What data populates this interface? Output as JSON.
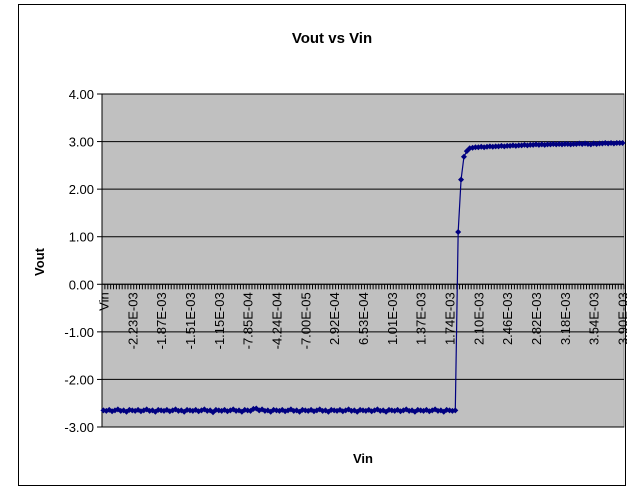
{
  "chart_data": {
    "type": "line",
    "title": "Vout vs Vin",
    "x_label": "Vin",
    "y_label": "Vout",
    "categories": [
      "Vin",
      null,
      null,
      null,
      null,
      null,
      null,
      null,
      null,
      null,
      "-2.23E-03",
      null,
      null,
      null,
      null,
      null,
      null,
      null,
      null,
      null,
      "-1.87E-03",
      null,
      null,
      null,
      null,
      null,
      null,
      null,
      null,
      null,
      "-1.51E-03",
      null,
      null,
      null,
      null,
      null,
      null,
      null,
      null,
      null,
      "-1.15E-03",
      null,
      null,
      null,
      null,
      null,
      null,
      null,
      null,
      null,
      "-7.85E-04",
      null,
      null,
      null,
      null,
      null,
      null,
      null,
      null,
      null,
      "-4.24E-04",
      null,
      null,
      null,
      null,
      null,
      null,
      null,
      null,
      null,
      "-7.00E-05",
      null,
      null,
      null,
      null,
      null,
      null,
      null,
      null,
      null,
      "2.92E-04",
      null,
      null,
      null,
      null,
      null,
      null,
      null,
      null,
      null,
      "6.53E-04",
      null,
      null,
      null,
      null,
      null,
      null,
      null,
      null,
      null,
      "1.01E-03",
      null,
      null,
      null,
      null,
      null,
      null,
      null,
      null,
      null,
      "1.37E-03",
      null,
      null,
      null,
      null,
      null,
      null,
      null,
      null,
      null,
      "1.74E-03",
      null,
      null,
      null,
      null,
      null,
      null,
      null,
      null,
      null,
      "2.10E-03",
      null,
      null,
      null,
      null,
      null,
      null,
      null,
      null,
      null,
      "2.46E-03",
      null,
      null,
      null,
      null,
      null,
      null,
      null,
      null,
      null,
      "2.82E-03",
      null,
      null,
      null,
      null,
      null,
      null,
      null,
      null,
      null,
      "3.18E-03",
      null,
      null,
      null,
      null,
      null,
      null,
      null,
      null,
      null,
      "3.54E-03",
      null,
      null,
      null,
      null,
      null,
      null,
      null,
      null,
      null,
      "3.90E-03"
    ],
    "series": [
      {
        "name": "Vout",
        "color": "#000080",
        "values": [
          -2.65,
          -2.66,
          -2.64,
          -2.67,
          -2.65,
          -2.63,
          -2.66,
          -2.65,
          -2.68,
          -2.64,
          -2.65,
          -2.66,
          -2.64,
          -2.67,
          -2.65,
          -2.63,
          -2.66,
          -2.65,
          -2.68,
          -2.64,
          -2.65,
          -2.66,
          -2.64,
          -2.67,
          -2.65,
          -2.63,
          -2.66,
          -2.65,
          -2.68,
          -2.64,
          -2.65,
          -2.66,
          -2.64,
          -2.67,
          -2.65,
          -2.63,
          -2.66,
          -2.65,
          -2.69,
          -2.64,
          -2.65,
          -2.66,
          -2.64,
          -2.67,
          -2.65,
          -2.63,
          -2.66,
          -2.65,
          -2.68,
          -2.64,
          -2.65,
          -2.66,
          -2.62,
          -2.61,
          -2.65,
          -2.63,
          -2.66,
          -2.65,
          -2.68,
          -2.64,
          -2.65,
          -2.66,
          -2.64,
          -2.67,
          -2.65,
          -2.63,
          -2.66,
          -2.65,
          -2.68,
          -2.64,
          -2.65,
          -2.66,
          -2.64,
          -2.67,
          -2.65,
          -2.63,
          -2.66,
          -2.65,
          -2.68,
          -2.64,
          -2.65,
          -2.66,
          -2.64,
          -2.67,
          -2.65,
          -2.63,
          -2.66,
          -2.65,
          -2.68,
          -2.64,
          -2.65,
          -2.66,
          -2.64,
          -2.67,
          -2.65,
          -2.63,
          -2.66,
          -2.65,
          -2.68,
          -2.64,
          -2.65,
          -2.66,
          -2.64,
          -2.67,
          -2.65,
          -2.63,
          -2.66,
          -2.65,
          -2.68,
          -2.64,
          -2.65,
          -2.66,
          -2.64,
          -2.67,
          -2.65,
          -2.63,
          -2.66,
          -2.65,
          -2.68,
          -2.64,
          -2.65,
          -2.66,
          -2.65,
          1.1,
          2.2,
          2.68,
          2.8,
          2.86,
          2.87,
          2.88,
          2.88,
          2.89,
          2.88,
          2.89,
          2.9,
          2.89,
          2.9,
          2.9,
          2.91,
          2.9,
          2.91,
          2.91,
          2.92,
          2.91,
          2.92,
          2.92,
          2.93,
          2.92,
          2.93,
          2.93,
          2.94,
          2.93,
          2.94,
          2.93,
          2.94,
          2.94,
          2.95,
          2.94,
          2.95,
          2.94,
          2.95,
          2.95,
          2.94,
          2.95,
          2.95,
          2.96,
          2.95,
          2.96,
          2.95,
          2.94,
          2.96,
          2.95,
          2.96,
          2.96,
          2.97,
          2.96,
          2.97,
          2.96,
          2.97,
          2.97,
          2.97
        ]
      }
    ],
    "ylim": [
      -3,
      4
    ],
    "yticks": [
      {
        "value": -3,
        "label": "-3.00"
      },
      {
        "value": -2,
        "label": "-2.00"
      },
      {
        "value": -1,
        "label": "-1.00"
      },
      {
        "value": 0,
        "label": "0.00"
      },
      {
        "value": 1,
        "label": "1.00"
      },
      {
        "value": 2,
        "label": "2.00"
      },
      {
        "value": 3,
        "label": "3.00"
      },
      {
        "value": 4,
        "label": "4.00"
      }
    ],
    "grid": true
  }
}
